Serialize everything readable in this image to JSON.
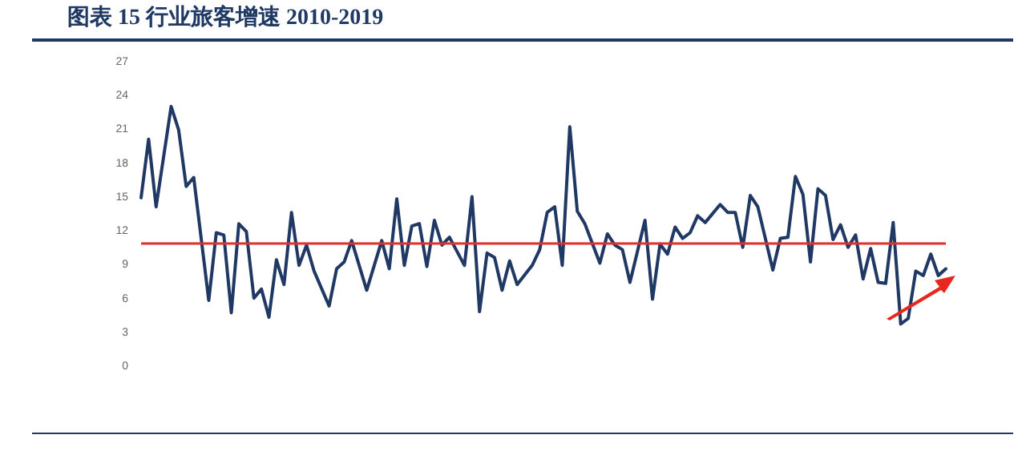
{
  "chart_data": {
    "type": "line",
    "title": "图表 15   行业旅客增速 2010-2019",
    "categories": [
      null,
      null,
      null,
      null,
      null,
      null,
      null,
      null,
      null,
      null,
      null,
      null,
      null,
      null,
      null,
      null,
      null,
      null,
      null,
      null,
      null,
      null,
      null,
      null,
      null,
      null,
      null,
      null,
      null,
      null,
      null,
      null,
      null,
      null,
      null,
      null,
      null,
      null,
      null,
      null,
      null,
      null,
      null,
      null,
      null,
      null,
      null,
      null,
      null,
      null,
      null,
      null,
      null,
      null,
      null,
      null,
      null,
      null,
      null,
      null,
      null,
      null,
      null,
      null,
      null,
      null,
      null,
      null,
      null,
      null,
      null,
      null,
      null,
      null,
      null,
      null,
      null,
      null,
      null,
      null,
      null,
      null,
      null,
      null,
      null,
      null,
      null,
      null,
      null,
      null,
      null,
      null,
      null,
      null,
      null,
      null,
      null,
      null,
      null,
      null,
      null,
      null,
      null,
      null,
      null,
      null,
      null,
      null
    ],
    "series": [
      {
        "color": "#1f3864",
        "values": [
          15,
          20.2,
          14.2,
          null,
          23.1,
          21,
          16,
          16.8,
          null,
          5.9,
          11.9,
          11.7,
          4.8,
          12.7,
          12,
          6.1,
          6.9,
          4.4,
          9.5,
          7.3,
          13.7,
          9,
          10.8,
          8.5,
          null,
          5.4,
          8.7,
          9.3,
          11.2,
          null,
          6.8,
          null,
          11.2,
          8.7,
          14.9,
          9,
          12.5,
          12.7,
          8.9,
          13,
          10.8,
          11.5,
          null,
          9,
          15.1,
          4.9,
          10.1,
          9.7,
          6.8,
          9.4,
          7.3,
          null,
          9,
          10.4,
          13.7,
          14.2,
          9,
          21.3,
          13.8,
          12.7,
          null,
          9.2,
          11.8,
          10.8,
          10.4,
          7.5,
          null,
          13,
          6,
          10.9,
          10,
          12.4,
          11.4,
          11.9,
          13.4,
          12.8,
          null,
          14.4,
          13.7,
          13.7,
          10.6,
          15.2,
          14.2,
          null,
          8.6,
          11.4,
          11.5,
          16.9,
          15.3,
          9.3,
          15.8,
          15.2,
          11.3,
          12.6,
          10.6,
          11.7,
          7.8,
          10.5,
          7.5,
          7.4,
          12.8,
          3.8,
          4.3,
          8.5,
          8.1,
          10,
          8.1,
          8.7
        ]
      }
    ],
    "ylim": [
      0,
      27
    ],
    "yticks": [
      0,
      3,
      6,
      9,
      12,
      15,
      18,
      21,
      24,
      27
    ],
    "grid": false,
    "marker": "none",
    "line_style": "solid",
    "ref_lines": [
      {
        "axis": "y",
        "value": 11,
        "color": "#e03030"
      }
    ]
  }
}
